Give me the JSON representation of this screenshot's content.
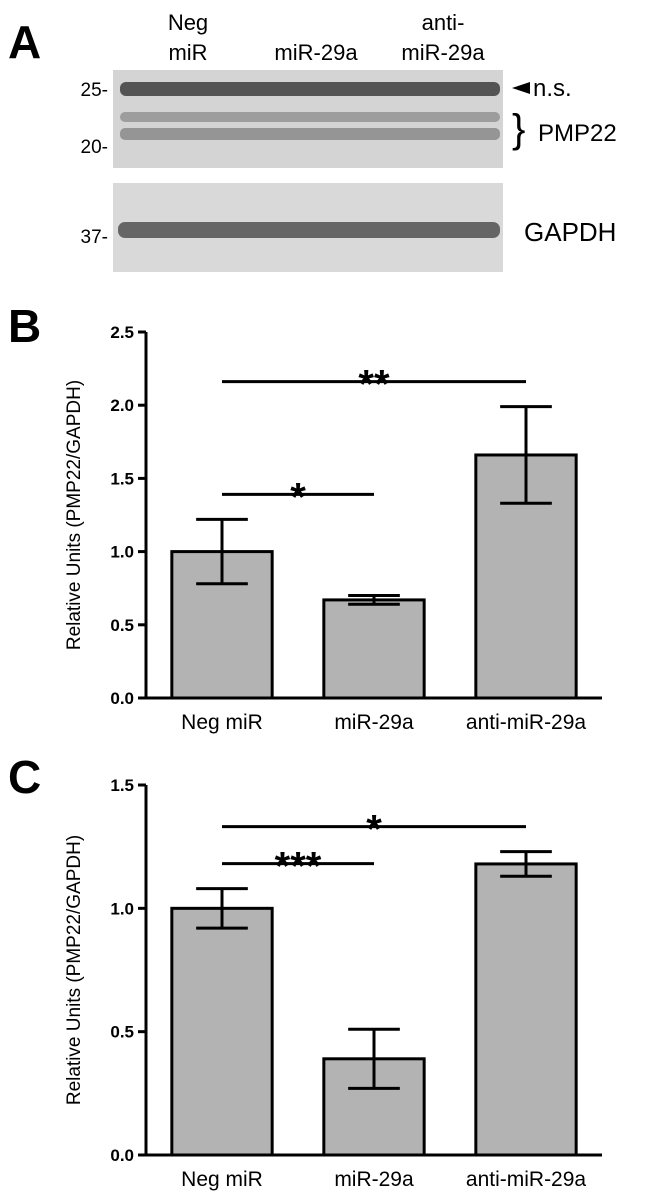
{
  "blot": {
    "label": "A",
    "lanes": [
      [
        "Neg",
        "miR"
      ],
      [
        "miR-29a"
      ],
      [
        "anti-",
        "miR-29a"
      ]
    ],
    "markers": [
      "25-",
      "20-",
      "37-"
    ],
    "ns": "n.s.",
    "target": "PMP22",
    "control": "GAPDH"
  },
  "chart_data": [
    {
      "type": "bar",
      "label": "B",
      "ylabel": "Relative Units (PMP22/GAPDH)",
      "categories": [
        "Neg miR",
        "miR-29a",
        "anti-miR-29a"
      ],
      "values": [
        1.0,
        0.67,
        1.66
      ],
      "errors": [
        0.22,
        0.03,
        0.33
      ],
      "color": "#b3b3b3",
      "ylim": [
        0,
        2.5
      ],
      "yticks": [
        {
          "value": 0,
          "label": "0.0"
        },
        0.5,
        {
          "value": 1,
          "label": "1.0"
        },
        1.5,
        {
          "value": 2,
          "label": "2.0"
        },
        2.5
      ],
      "annotations": [
        {
          "text": "**",
          "pair": [
            0,
            2
          ]
        },
        {
          "text": "*",
          "pair": [
            0,
            1
          ]
        }
      ]
    },
    {
      "type": "bar",
      "label": "C",
      "ylabel": "Relative Units (PMP22/GAPDH)",
      "categories": [
        "Neg miR",
        "miR-29a",
        "anti-miR-29a"
      ],
      "values": [
        1.0,
        0.39,
        1.18
      ],
      "errors": [
        0.08,
        0.12,
        0.05
      ],
      "color": "#b3b3b3",
      "ylim": [
        0,
        1.5
      ],
      "yticks": [
        {
          "value": 0,
          "label": "0.0"
        },
        0.5,
        {
          "value": 1,
          "label": "1.0"
        },
        1.5
      ],
      "annotations": [
        {
          "text": "*",
          "pair": [
            0,
            2
          ]
        },
        {
          "text": "***",
          "pair": [
            0,
            1
          ]
        }
      ]
    }
  ]
}
